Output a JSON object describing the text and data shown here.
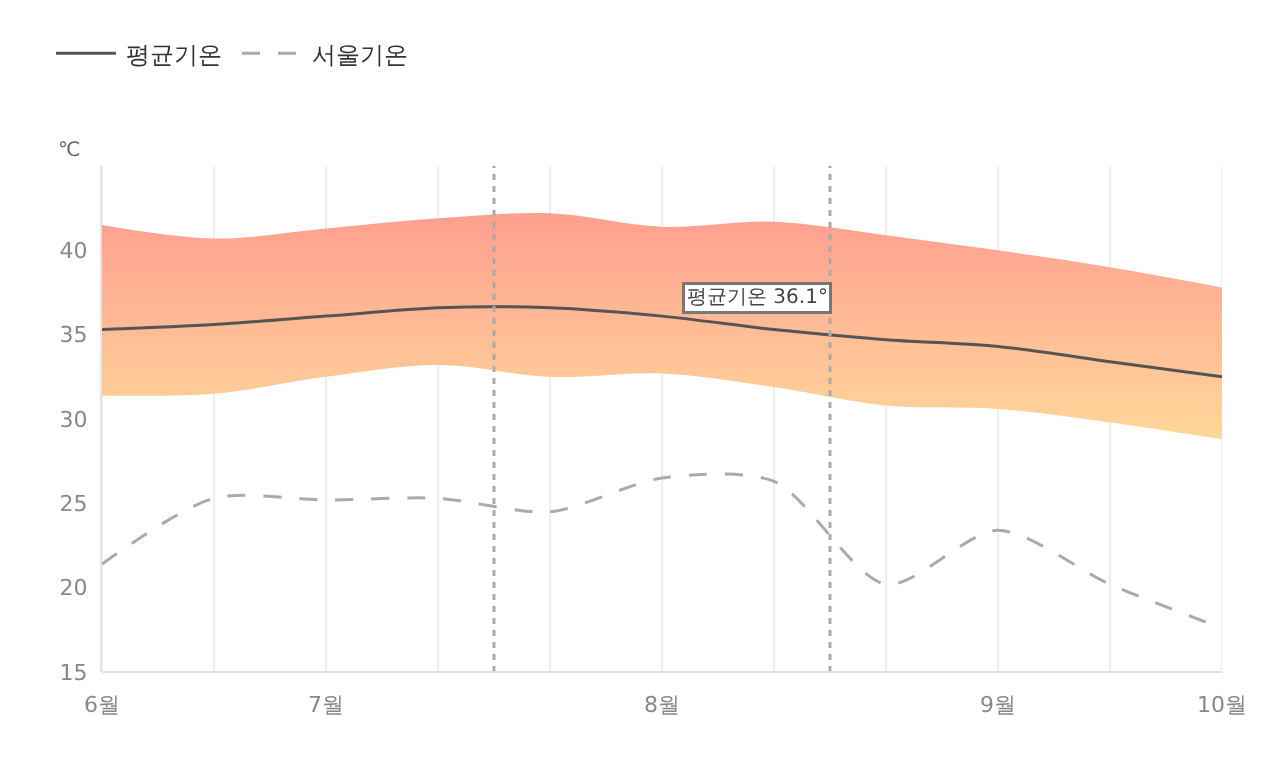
{
  "chart_data": {
    "type": "line",
    "ylabel": "℃",
    "categories": [
      "6월",
      null,
      "7월",
      null,
      null,
      "8월",
      null,
      null,
      "9월",
      null,
      "10월"
    ],
    "series": [
      {
        "name": "평균기온",
        "color": "#555555",
        "line_style": "solid",
        "values": [
          35.3,
          35.6,
          36.1,
          36.6,
          36.6,
          36.1,
          35.3,
          34.7,
          34.3,
          33.4,
          32.5
        ],
        "lower": [
          31.4,
          31.5,
          32.5,
          33.2,
          32.5,
          32.7,
          31.9,
          30.8,
          30.6,
          29.8,
          28.8
        ],
        "upper": [
          41.5,
          40.7,
          41.3,
          41.9,
          42.2,
          41.4,
          41.7,
          40.9,
          40.0,
          39.0,
          37.8
        ]
      },
      {
        "name": "서울기온",
        "color": "#aaaaaa",
        "line_style": "dashed",
        "values": [
          21.4,
          25.3,
          25.2,
          25.3,
          24.5,
          26.5,
          26.3,
          20.2,
          23.4,
          20.2,
          17.6
        ]
      }
    ],
    "ylim": [
      15,
      45
    ],
    "yticks": [
      15,
      20,
      25,
      30,
      35,
      40
    ],
    "annotations": [
      {
        "text": "평균기온 36.1°",
        "x": "8월",
        "y": 36.1
      }
    ],
    "grid": "x",
    "legend": "top left",
    "marker": "none"
  }
}
